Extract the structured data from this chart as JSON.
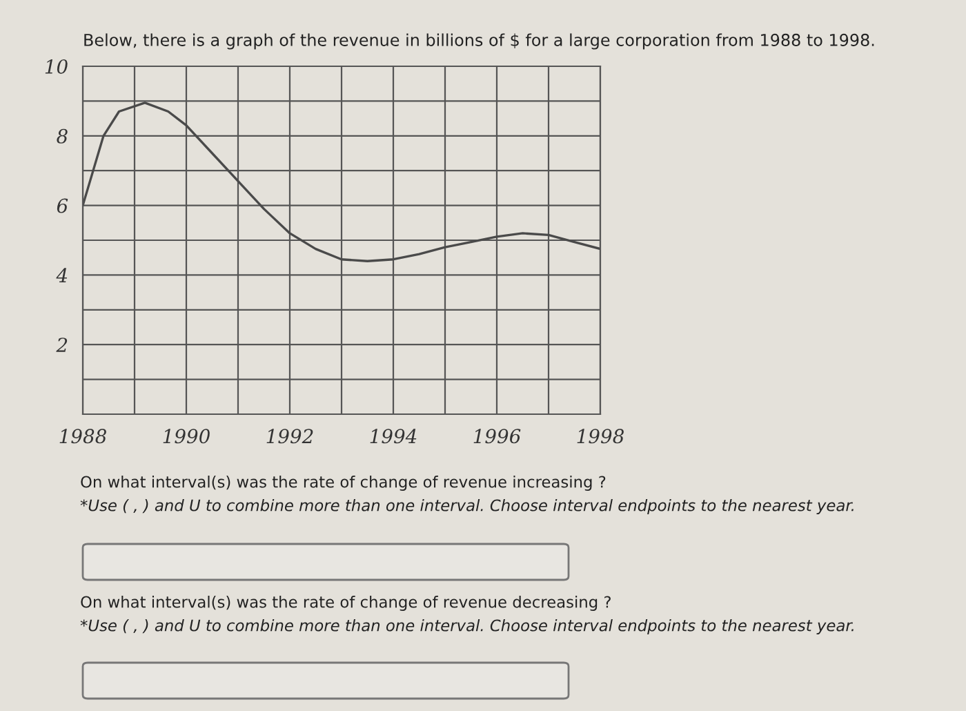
{
  "chart_data": {
    "type": "line",
    "title": "Below, there is a graph of the revenue in billions of $ for a large corporation from 1988 to 1998.",
    "x": [
      1988,
      1988.4,
      1988.7,
      1989.2,
      1989.65,
      1990,
      1990.5,
      1991,
      1991.5,
      1992,
      1992.5,
      1993,
      1993.5,
      1994,
      1994.5,
      1995,
      1995.5,
      1996,
      1996.5,
      1997,
      1997.5,
      1998
    ],
    "series": [
      {
        "color": "#4a4a4a",
        "values": [
          6.0,
          8.0,
          8.7,
          8.95,
          8.7,
          8.3,
          7.5,
          6.7,
          5.9,
          5.2,
          4.75,
          4.45,
          4.4,
          4.45,
          4.6,
          4.8,
          4.95,
          5.1,
          5.2,
          5.15,
          4.95,
          4.75
        ]
      }
    ],
    "xlim": [
      1988,
      1998
    ],
    "ylim": [
      0,
      10
    ],
    "xticks": [
      1988,
      {
        "value": 1989,
        "label": null
      },
      1990,
      {
        "value": 1991,
        "label": null
      },
      1992,
      {
        "value": 1993,
        "label": null
      },
      1994,
      {
        "value": 1995,
        "label": null
      },
      1996,
      {
        "value": 1997,
        "label": null
      },
      1998
    ],
    "yticks": [
      {
        "value": 0,
        "label": null
      },
      {
        "value": 1,
        "label": null
      },
      2,
      {
        "value": 3,
        "label": null
      },
      4,
      {
        "value": 5,
        "label": null
      },
      6,
      {
        "value": 7,
        "label": null
      },
      8,
      {
        "value": 9,
        "label": null
      },
      10
    ],
    "grid": true,
    "marker": "none",
    "line_style": "solid",
    "legend": false,
    "annotations": [
      "On what interval(s) was the rate of change of revenue increasing ?",
      "*Use ( , ) and U to combine more than one interval. Choose interval endpoints to the nearest year.",
      "On what interval(s) was the rate of change of revenue decreasing ?",
      "*Use ( , ) and U to combine more than one interval. Choose interval endpoints to the nearest year."
    ]
  }
}
